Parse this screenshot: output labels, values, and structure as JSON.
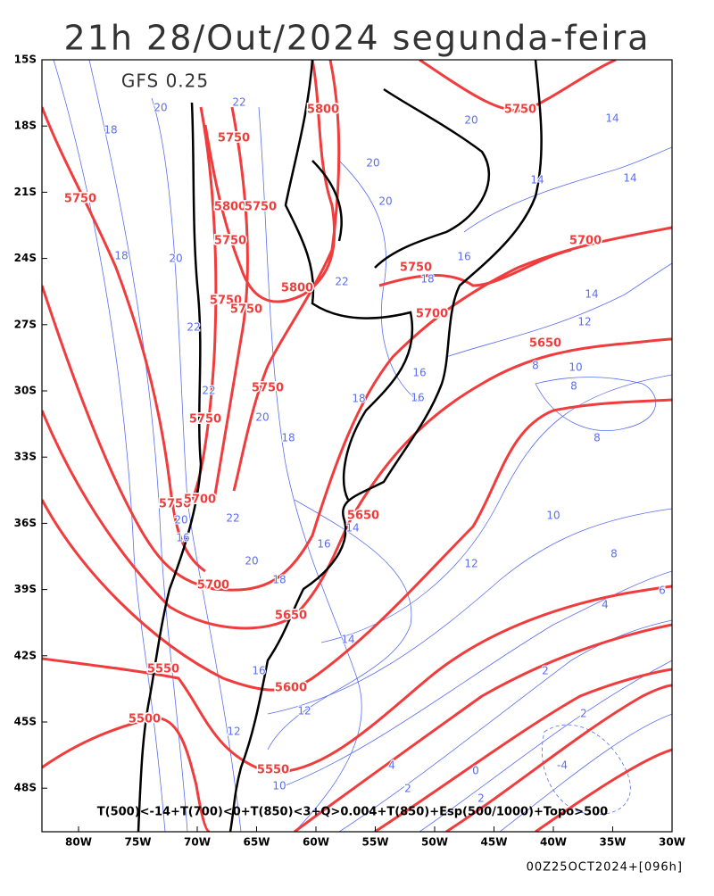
{
  "title": "21h 28/Out/2024 segunda-feira",
  "model": "GFS 0.25",
  "lat_labels": [
    "15S",
    "18S",
    "21S",
    "24S",
    "27S",
    "30S",
    "33S",
    "36S",
    "39S",
    "42S",
    "45S",
    "48S"
  ],
  "lon_labels": [
    "80W",
    "75W",
    "70W",
    "65W",
    "60W",
    "55W",
    "50W",
    "45W",
    "40W",
    "35W",
    "30W"
  ],
  "legend": "T(500)<-14+T(700)<0+T(850)<3+Q>0.004+T(850)+Esp(500/1000)+Topo>500",
  "footer": "00Z25OCT2024+[096h]",
  "thickness_labels": [
    "5800",
    "5750",
    "5750",
    "5750",
    "5800",
    "5750",
    "5750",
    "5700",
    "5750",
    "5800",
    "5750",
    "5750",
    "5700",
    "5650",
    "5750",
    "5750",
    "5750",
    "5700",
    "5650",
    "5700",
    "5650",
    "5550",
    "5600",
    "5500",
    "5550"
  ],
  "temperature_labels": [
    "18",
    "20",
    "22",
    "20",
    "20",
    "20",
    "14",
    "14",
    "14",
    "18",
    "20",
    "16",
    "18",
    "14",
    "22",
    "12",
    "22",
    "8",
    "10",
    "16",
    "8",
    "22",
    "20",
    "18",
    "18",
    "16",
    "8",
    "10",
    "14",
    "16",
    "20",
    "22",
    "16",
    "12",
    "8",
    "20",
    "18",
    "6",
    "4",
    "14",
    "2",
    "16",
    "12",
    "12",
    "2",
    "4",
    "0",
    "10",
    "-4",
    "2",
    "2"
  ]
}
